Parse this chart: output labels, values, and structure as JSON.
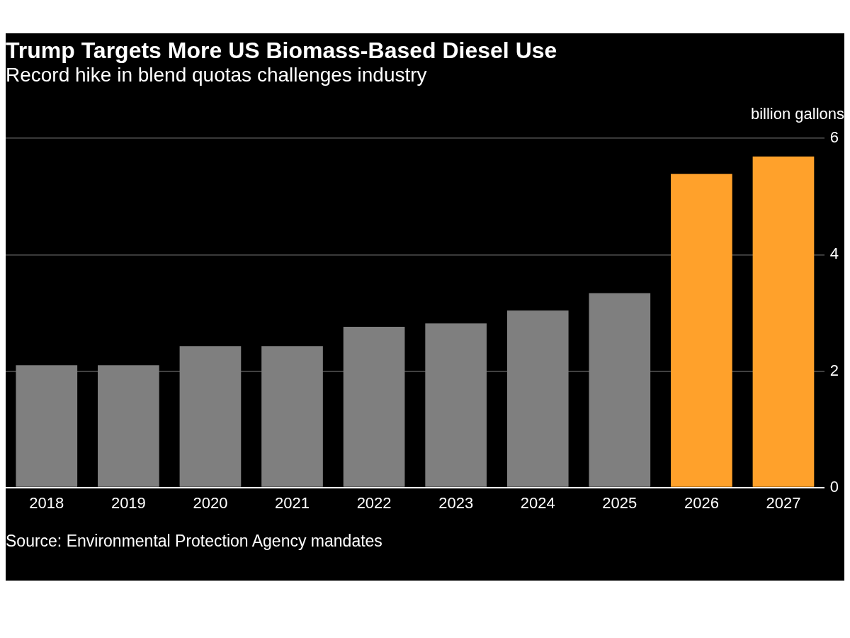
{
  "chart_data": {
    "type": "bar",
    "title": "Trump Targets More US Biomass-Based Diesel Use",
    "subtitle": "Record hike in blend quotas challenges industry",
    "ylabel": "billion gallons",
    "categories": [
      "2018",
      "2019",
      "2020",
      "2021",
      "2022",
      "2023",
      "2024",
      "2025",
      "2026",
      "2027"
    ],
    "values": [
      2.1,
      2.1,
      2.43,
      2.43,
      2.76,
      2.82,
      3.04,
      3.34,
      5.39,
      5.69
    ],
    "colors": [
      "#7f7f7f",
      "#7f7f7f",
      "#7f7f7f",
      "#7f7f7f",
      "#7f7f7f",
      "#7f7f7f",
      "#7f7f7f",
      "#7f7f7f",
      "#ffa12b",
      "#ffa12b"
    ],
    "ylim": [
      0,
      6
    ],
    "yticks": [
      0,
      2,
      4,
      6
    ],
    "grid": "y",
    "annotations": [
      "Source: Environmental Protection Agency mandates"
    ]
  }
}
